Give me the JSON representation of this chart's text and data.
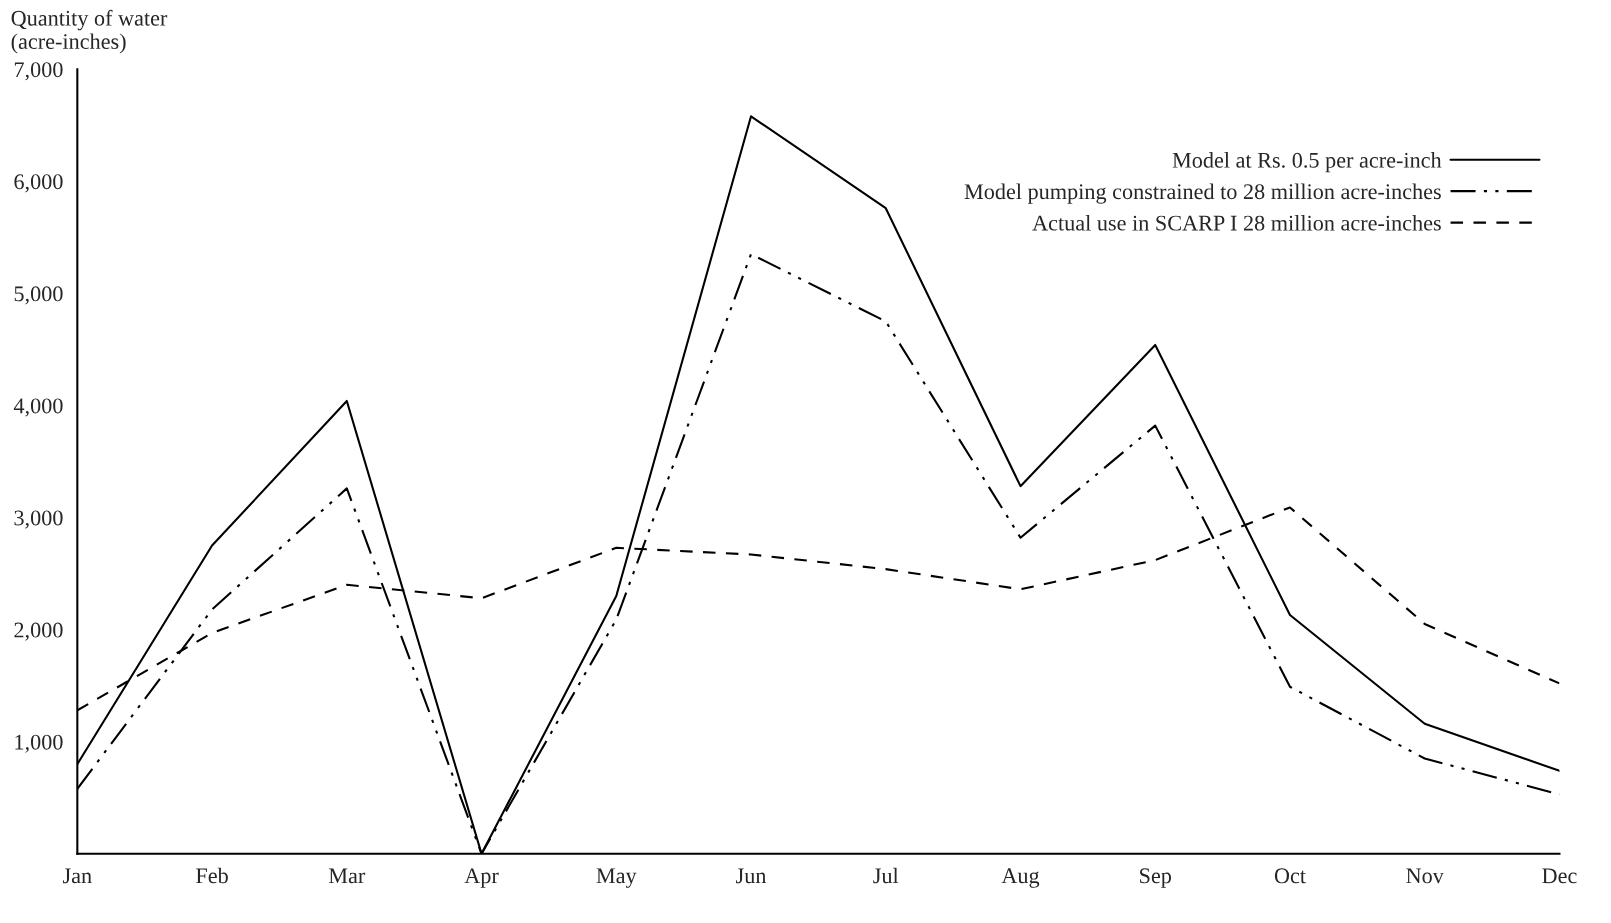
{
  "chart_data": {
    "type": "line",
    "ylabel": "Quantity of water\n(acre-inches)",
    "categories": [
      "Jan",
      "Feb",
      "Mar",
      "Apr",
      "May",
      "Jun",
      "Jul",
      "Aug",
      "Sep",
      "Oct",
      "Nov",
      "Dec"
    ],
    "series": [
      {
        "name": "Model at Rs. 0.5 per acre-inch",
        "color": "#000000",
        "line_style": "solid",
        "values": [
          800,
          2750,
          4040,
          0,
          2300,
          6580,
          5760,
          3280,
          4540,
          2130,
          1160,
          740
        ]
      },
      {
        "name": "Model pumping constrained to 28 million acre-inches",
        "color": "#000000",
        "line_style": "dashdot",
        "values": [
          580,
          2180,
          3260,
          0,
          2090,
          5350,
          4750,
          2820,
          3820,
          1490,
          850,
          530
        ]
      },
      {
        "name": "Actual use in SCARP I 28 million acre-inches",
        "color": "#000000",
        "line_style": "dashed",
        "values": [
          1280,
          1970,
          2400,
          2280,
          2730,
          2670,
          2540,
          2360,
          2620,
          3090,
          2050,
          1520
        ]
      }
    ],
    "ylim": [
      0,
      7000
    ],
    "yticks": [
      {
        "value": 1000,
        "label": "1,000"
      },
      {
        "value": 2000,
        "label": "2,000"
      },
      {
        "value": 3000,
        "label": "3,000"
      },
      {
        "value": 4000,
        "label": "4,000"
      },
      {
        "value": 5000,
        "label": "5,000"
      },
      {
        "value": 6000,
        "label": "6,000"
      },
      {
        "value": 7000,
        "label": "7,000"
      }
    ],
    "legend": "top right",
    "grid": false,
    "marker": "none"
  }
}
